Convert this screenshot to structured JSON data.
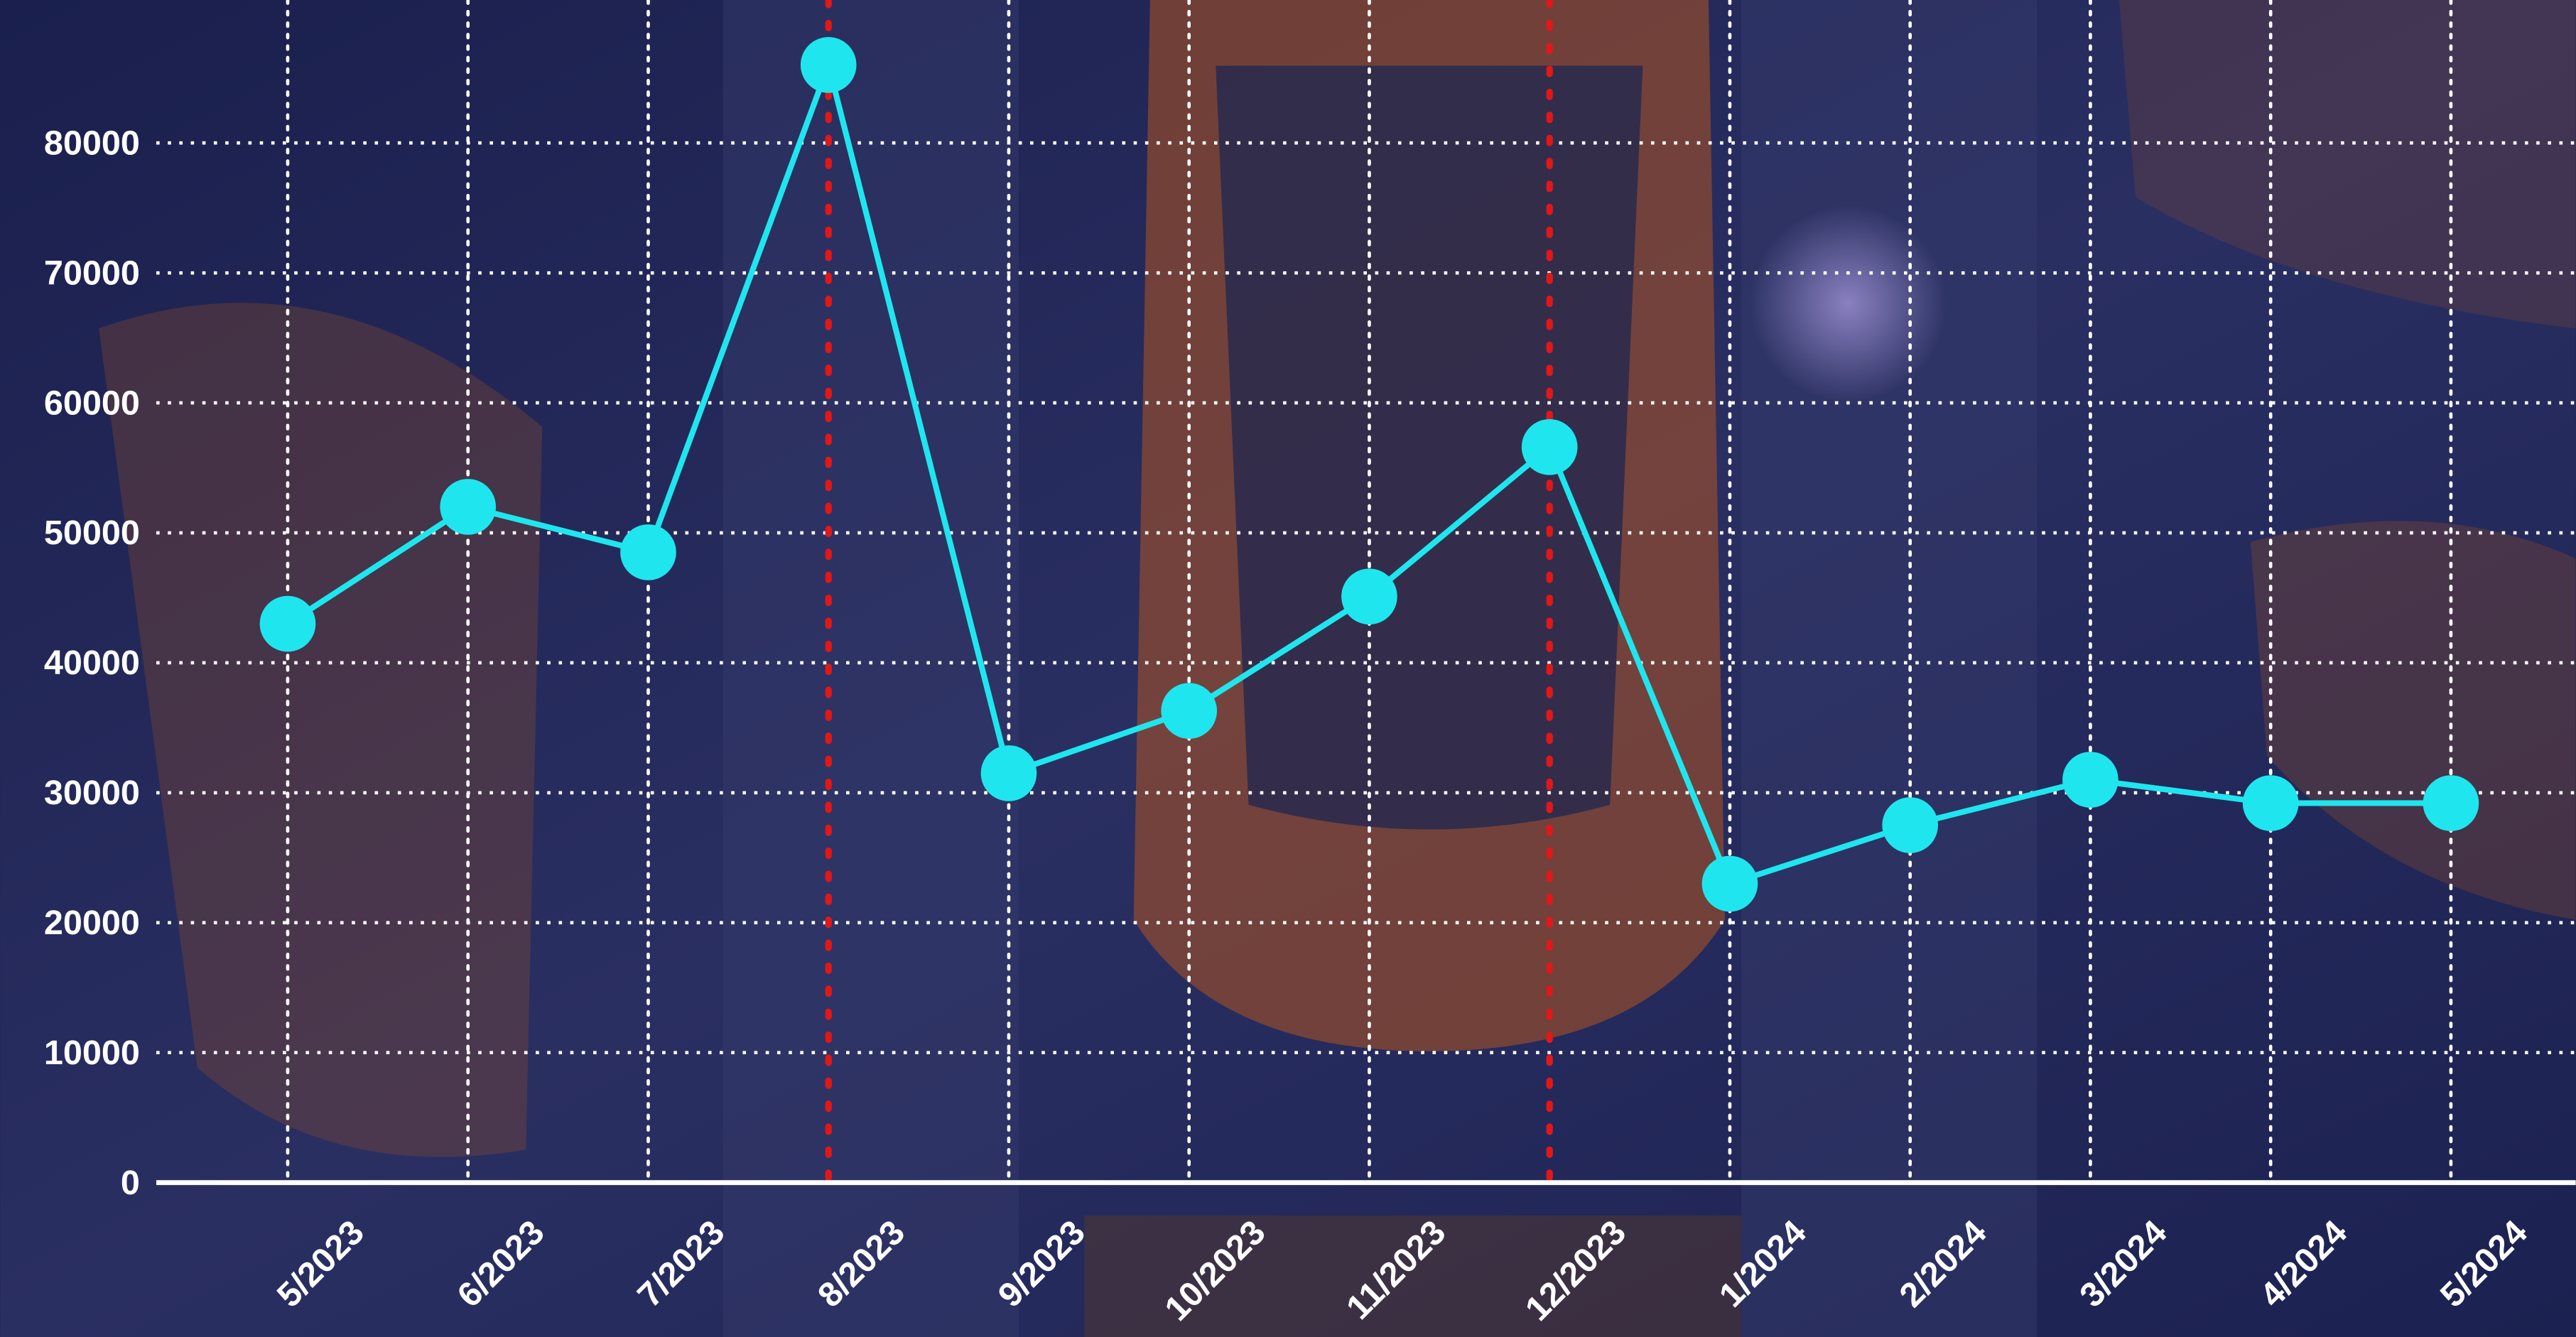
{
  "chart_data": {
    "type": "line",
    "categories": [
      "5/2023",
      "6/2023",
      "7/2023",
      "8/2023",
      "9/2023",
      "10/2023",
      "11/2023",
      "12/2023",
      "1/2024",
      "2/2024",
      "3/2024",
      "4/2024",
      "5/2024"
    ],
    "values": [
      43000,
      52000,
      48500,
      86000,
      31500,
      36300,
      45100,
      56600,
      23000,
      27500,
      31000,
      29200,
      29200
    ],
    "color": "#1fe6ee",
    "highlight": [
      3,
      7
    ],
    "highlight_color": "#e01818",
    "ylim": [
      0,
      91000
    ],
    "yticks": [
      0,
      10000,
      20000,
      30000,
      40000,
      50000,
      60000,
      70000,
      80000
    ],
    "grid": true
  }
}
